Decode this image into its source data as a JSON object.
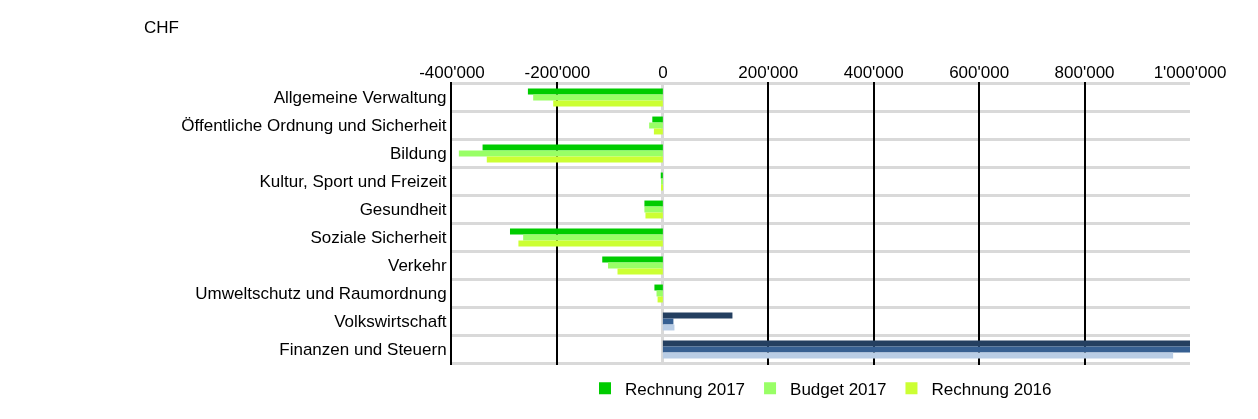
{
  "chart_data": {
    "type": "bar",
    "orientation": "horizontal",
    "title": "CHF",
    "categories": [
      "Allgemeine Verwaltung",
      "Öffentliche Ordnung und Sicherheit",
      "Bildung",
      "Kultur, Sport und Freizeit",
      "Gesundheit",
      "Soziale Sicherheit",
      "Verkehr",
      "Umweltschutz und Raumordnung",
      "Volkswirtschaft",
      "Finanzen und Steuern"
    ],
    "series": [
      {
        "name": "Rechnung 2017",
        "colors": [
          "#00cc00",
          "#00cc00",
          "#00cc00",
          "#00cc00",
          "#00cc00",
          "#00cc00",
          "#00cc00",
          "#00cc00",
          "#243f60",
          "#243f60"
        ],
        "values": [
          -256000,
          -20000,
          -342000,
          -4000,
          -35000,
          -290000,
          -115000,
          -16000,
          132000,
          1000000
        ]
      },
      {
        "name": "Budget 2017",
        "colors": [
          "#99ff66",
          "#99ff66",
          "#99ff66",
          "#99ff66",
          "#99ff66",
          "#99ff66",
          "#99ff66",
          "#99ff66",
          "#376092",
          "#376092"
        ],
        "values": [
          -246000,
          -26000,
          -387000,
          -2000,
          -35000,
          -265000,
          -104000,
          -12000,
          20000,
          1000000
        ]
      },
      {
        "name": "Rechnung 2016",
        "colors": [
          "#ccff33",
          "#ccff33",
          "#ccff33",
          "#ccff33",
          "#ccff33",
          "#ccff33",
          "#ccff33",
          "#ccff33",
          "#b9cde5",
          "#b9cde5"
        ],
        "values": [
          -208000,
          -17000,
          -334000,
          -2000,
          -33000,
          -274000,
          -86000,
          -10000,
          22000,
          968000
        ]
      }
    ],
    "xlim": [
      -400000,
      1000000
    ],
    "xticks": [
      {
        "value": -400000,
        "label": "-400'000"
      },
      {
        "value": -200000,
        "label": "-200'000"
      },
      0,
      {
        "value": 200000,
        "label": "200'000"
      },
      {
        "value": 400000,
        "label": "400'000"
      },
      {
        "value": 600000,
        "label": "600'000"
      },
      {
        "value": 800000,
        "label": "800'000"
      },
      {
        "value": 1000000,
        "label": "1'000'000"
      }
    ],
    "grid": true,
    "legend": "bottom"
  }
}
